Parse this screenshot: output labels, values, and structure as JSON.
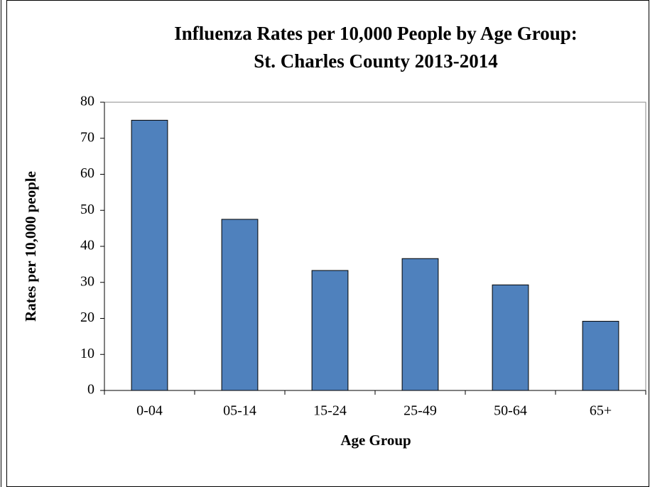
{
  "chart_data": {
    "type": "bar",
    "title": "Influenza Rates per 10,000 People by Age Group:",
    "subtitle": "St. Charles County 2013-2014",
    "x_label": "Age Group",
    "y_label": "Rates per  10,000 people",
    "categories": [
      "0-04",
      "05-14",
      "15-24",
      "25-49",
      "50-64",
      "65+"
    ],
    "values": [
      75,
      47.5,
      33.3,
      36.6,
      29.3,
      19.2
    ],
    "color": "#4f81bd",
    "ylim": [
      0,
      80
    ],
    "yticks": [
      0,
      10,
      20,
      30,
      40,
      50,
      60,
      70,
      80
    ],
    "grid": false
  }
}
